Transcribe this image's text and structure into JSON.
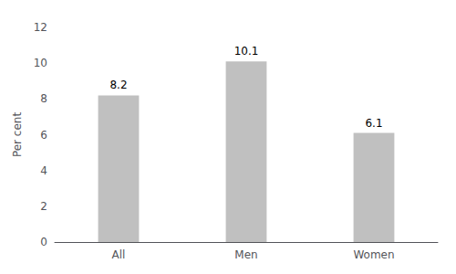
{
  "chart_data": {
    "type": "bar",
    "categories": [
      "All",
      "Men",
      "Women"
    ],
    "values": [
      8.2,
      10.1,
      6.1
    ],
    "color": "#c0c0c0",
    "ylabel": "Per cent",
    "ylim": [
      0,
      12
    ],
    "yticks": [
      0,
      2,
      4,
      6,
      8,
      10,
      12
    ],
    "grid": false,
    "data_labels": true
  }
}
